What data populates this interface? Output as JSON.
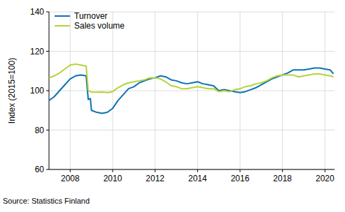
{
  "chart_data": {
    "type": "line",
    "y_label": "Index (2015=100)",
    "source": "Source: Statistics Finland",
    "x": [
      2007.0,
      2007.25,
      2007.5,
      2007.75,
      2008.0,
      2008.25,
      2008.5,
      2008.75,
      2008.85,
      2008.95,
      2009.0,
      2009.25,
      2009.5,
      2009.75,
      2010.0,
      2010.25,
      2010.5,
      2010.75,
      2011.0,
      2011.25,
      2011.5,
      2011.75,
      2012.0,
      2012.25,
      2012.5,
      2012.75,
      2013.0,
      2013.25,
      2013.5,
      2013.75,
      2014.0,
      2014.25,
      2014.5,
      2014.75,
      2015.0,
      2015.25,
      2015.5,
      2015.75,
      2016.0,
      2016.25,
      2016.5,
      2016.75,
      2017.0,
      2017.25,
      2017.5,
      2017.75,
      2018.0,
      2018.25,
      2018.5,
      2018.75,
      2019.0,
      2019.25,
      2019.5,
      2019.75,
      2020.0,
      2020.25,
      2020.4
    ],
    "series": [
      {
        "name": "Turnover",
        "color": "#0a72b0",
        "values": [
          95,
          97,
          100,
          103,
          106,
          107.5,
          108,
          107.5,
          95.5,
          96,
          90,
          89,
          88.5,
          89,
          91,
          95,
          98,
          101,
          102,
          104,
          105,
          106,
          106.5,
          107.5,
          107,
          105.5,
          105,
          104,
          103.5,
          104,
          104.5,
          103.5,
          103,
          102.5,
          100,
          100.5,
          100,
          99.5,
          99,
          99.5,
          100.5,
          101.5,
          103,
          104.5,
          106,
          107,
          108,
          109,
          110.5,
          110.5,
          110.5,
          111,
          111.5,
          111.5,
          111,
          110.5,
          108.5
        ]
      },
      {
        "name": "Sales volume",
        "color": "#b4d334",
        "values": [
          106.5,
          107.5,
          109,
          111,
          113,
          113.5,
          113,
          112.5,
          100,
          99.5,
          99.3,
          99.2,
          99.3,
          99,
          99.5,
          101.5,
          103,
          104,
          104.5,
          105,
          105.5,
          106.5,
          106.5,
          106,
          104.5,
          102.5,
          102,
          101,
          101,
          101.5,
          102,
          101.5,
          101,
          101,
          99.5,
          100,
          99.5,
          100.5,
          101,
          102,
          102.5,
          103.5,
          104,
          105,
          106.5,
          107.5,
          108,
          108,
          108,
          107,
          107.5,
          108,
          108.5,
          108.5,
          108,
          107.5,
          107
        ]
      }
    ],
    "xlim": [
      2007,
      2020.45
    ],
    "xticks": [
      2008,
      2010,
      2012,
      2014,
      2016,
      2018,
      2020
    ],
    "ylim": [
      60,
      140
    ],
    "yticks": [
      60,
      80,
      100,
      120,
      140
    ],
    "grid": true,
    "legend": "upper left"
  }
}
